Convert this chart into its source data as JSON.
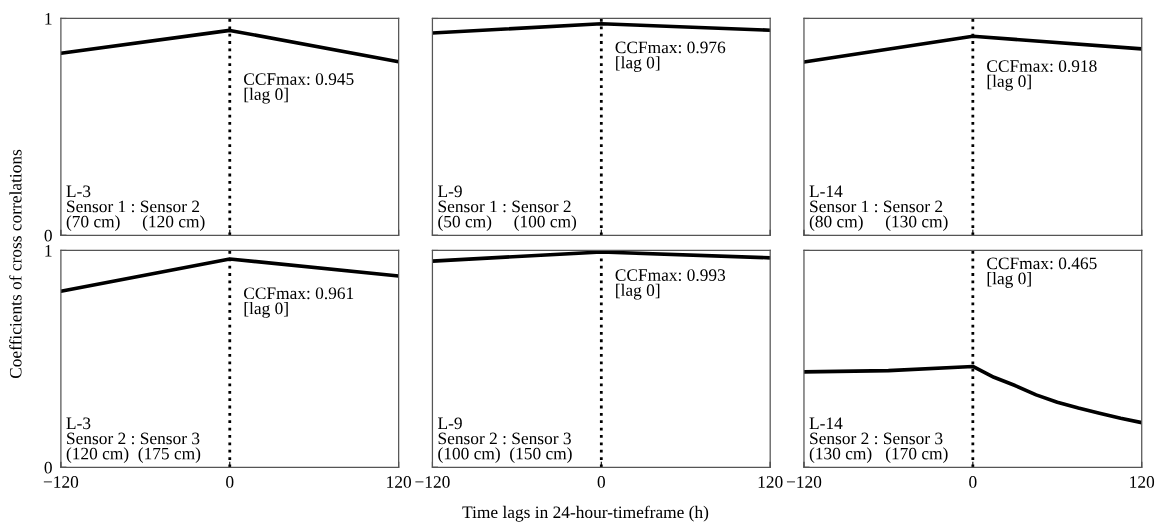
{
  "chart_data": [
    {
      "type": "line",
      "x": [
        -120,
        0,
        120
      ],
      "series": [
        {
          "color": "#000000",
          "values": [
            0.84,
            0.945,
            0.8
          ]
        }
      ],
      "xlim": [
        -120,
        120
      ],
      "ylim": [
        0,
        1
      ],
      "xticks": [
        -120,
        0,
        120
      ],
      "yticks": [
        0,
        1
      ],
      "tick_labels": "y",
      "ylabel": "Coefficients of cross correlations",
      "ref_lines": [
        {
          "axis": "x",
          "value": 0,
          "color": "#000000",
          "line_style": "dotted"
        }
      ],
      "annotations": [
        "CCFmax: 0.945\n[lag 0]",
        "L-3\nSensor 1 : Sensor 2\n(70 cm)     (120 cm)"
      ]
    },
    {
      "type": "line",
      "x": [
        -120,
        0,
        120
      ],
      "series": [
        {
          "color": "#000000",
          "values": [
            0.933,
            0.976,
            0.946
          ]
        }
      ],
      "xlim": [
        -120,
        120
      ],
      "ylim": [
        0,
        1
      ],
      "xticks": [
        -120,
        0,
        120
      ],
      "yticks": [
        0,
        1
      ],
      "tick_labels": false,
      "ref_lines": [
        {
          "axis": "x",
          "value": 0,
          "color": "#000000",
          "line_style": "dotted"
        }
      ],
      "annotations": [
        "CCFmax: 0.976\n[lag 0]",
        "L-9\nSensor 1 : Sensor 2\n(50 cm)     (100 cm)"
      ]
    },
    {
      "type": "line",
      "x": [
        -120,
        0,
        120
      ],
      "series": [
        {
          "color": "#000000",
          "values": [
            0.799,
            0.918,
            0.86
          ]
        }
      ],
      "xlim": [
        -120,
        120
      ],
      "ylim": [
        0,
        1
      ],
      "xticks": [
        -120,
        0,
        120
      ],
      "yticks": [
        0,
        1
      ],
      "tick_labels": false,
      "ref_lines": [
        {
          "axis": "x",
          "value": 0,
          "color": "#000000",
          "line_style": "dotted"
        }
      ],
      "annotations": [
        "CCFmax: 0.918\n[lag 0]",
        "L-14\nSensor 1 : Sensor 2\n(80 cm)     (130 cm)"
      ]
    },
    {
      "type": "line",
      "x": [
        -120,
        0,
        120
      ],
      "series": [
        {
          "color": "#000000",
          "values": [
            0.812,
            0.961,
            0.882
          ]
        }
      ],
      "xlim": [
        -120,
        120
      ],
      "ylim": [
        0,
        1
      ],
      "xticks": [
        -120,
        0,
        120
      ],
      "yticks": [
        0,
        1
      ],
      "ref_lines": [
        {
          "axis": "x",
          "value": 0,
          "color": "#000000",
          "line_style": "dotted"
        }
      ],
      "annotations": [
        "CCFmax: 0.961\n[lag 0]",
        "L-3\nSensor 2 : Sensor 3\n(120 cm)  (175 cm)"
      ]
    },
    {
      "type": "line",
      "x": [
        -120,
        0,
        120
      ],
      "series": [
        {
          "color": "#000000",
          "values": [
            0.951,
            0.993,
            0.966
          ]
        }
      ],
      "xlim": [
        -120,
        120
      ],
      "ylim": [
        0,
        1
      ],
      "xticks": [
        -120,
        0,
        120
      ],
      "yticks": [
        0,
        1
      ],
      "tick_labels": "x",
      "xlabel": "Time lags in 24-hour-timeframe (h)",
      "ref_lines": [
        {
          "axis": "x",
          "value": 0,
          "color": "#000000",
          "line_style": "dotted"
        }
      ],
      "annotations": [
        "CCFmax: 0.993\n[lag 0]",
        "L-9\nSensor 2 : Sensor 3\n(100 cm)  (150 cm)"
      ]
    },
    {
      "type": "line",
      "x": [
        -120,
        -60,
        0,
        15,
        30,
        45,
        60,
        75,
        90,
        105,
        120
      ],
      "series": [
        {
          "color": "#000000",
          "values": [
            0.44,
            0.446,
            0.465,
            0.415,
            0.377,
            0.334,
            0.3,
            0.273,
            0.249,
            0.226,
            0.206
          ]
        }
      ],
      "xlim": [
        -120,
        120
      ],
      "ylim": [
        0,
        1
      ],
      "xticks": [
        -120,
        0,
        120
      ],
      "yticks": [
        0,
        1
      ],
      "tick_labels": "x",
      "ref_lines": [
        {
          "axis": "x",
          "value": 0,
          "color": "#000000",
          "line_style": "dotted"
        }
      ],
      "annotations": [
        "CCFmax: 0.465\n[lag 0]",
        "L-14\nSensor 2 : Sensor 3\n(130 cm)   (170 cm)"
      ]
    }
  ]
}
